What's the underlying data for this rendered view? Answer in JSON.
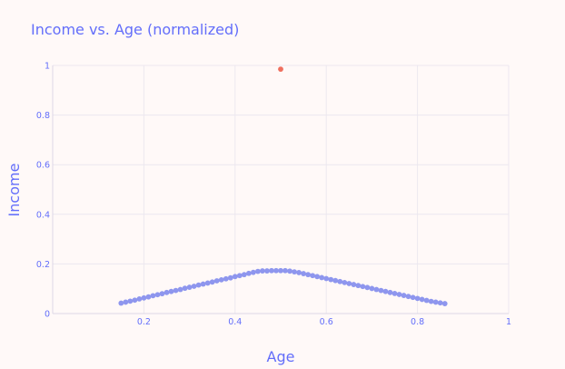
{
  "chart_data": {
    "type": "scatter",
    "title": "Income vs. Age (normalized)",
    "xlabel": "Age",
    "ylabel": "Income",
    "xlim": [
      0,
      1
    ],
    "ylim": [
      0,
      1
    ],
    "x_ticks": [
      0.2,
      0.4,
      0.6,
      0.8,
      1
    ],
    "x_tick_labels": [
      "0.2",
      "0.4",
      "0.6",
      "0.8",
      "1"
    ],
    "y_ticks": [
      0,
      0.2,
      0.4,
      0.6,
      0.8,
      1
    ],
    "y_tick_labels": [
      "0",
      "0.2",
      "0.4",
      "0.6",
      "0.8",
      "1"
    ],
    "grid": true,
    "legend": "none",
    "series": [
      {
        "color": "#8e96ee",
        "x": [
          0.15,
          0.16,
          0.17,
          0.18,
          0.19,
          0.2,
          0.21,
          0.22,
          0.23,
          0.24,
          0.25,
          0.26,
          0.27,
          0.28,
          0.29,
          0.3,
          0.31,
          0.32,
          0.33,
          0.34,
          0.35,
          0.36,
          0.37,
          0.38,
          0.39,
          0.4,
          0.41,
          0.42,
          0.43,
          0.44,
          0.45,
          0.46,
          0.47,
          0.48,
          0.49,
          0.5,
          0.51,
          0.52,
          0.53,
          0.54,
          0.55,
          0.56,
          0.57,
          0.58,
          0.59,
          0.6,
          0.61,
          0.62,
          0.63,
          0.64,
          0.65,
          0.66,
          0.67,
          0.68,
          0.69,
          0.7,
          0.71,
          0.72,
          0.73,
          0.74,
          0.75,
          0.76,
          0.77,
          0.78,
          0.79,
          0.8,
          0.81,
          0.82,
          0.83,
          0.84,
          0.85,
          0.86
        ],
        "y": [
          0.042,
          0.046,
          0.05,
          0.054,
          0.059,
          0.063,
          0.067,
          0.072,
          0.076,
          0.08,
          0.085,
          0.089,
          0.093,
          0.097,
          0.102,
          0.106,
          0.11,
          0.115,
          0.119,
          0.123,
          0.127,
          0.132,
          0.136,
          0.14,
          0.144,
          0.149,
          0.153,
          0.157,
          0.162,
          0.166,
          0.17,
          0.172,
          0.172,
          0.173,
          0.173,
          0.173,
          0.173,
          0.171,
          0.168,
          0.165,
          0.161,
          0.157,
          0.153,
          0.149,
          0.145,
          0.141,
          0.137,
          0.133,
          0.129,
          0.125,
          0.121,
          0.117,
          0.113,
          0.109,
          0.105,
          0.101,
          0.097,
          0.093,
          0.089,
          0.085,
          0.081,
          0.077,
          0.073,
          0.069,
          0.065,
          0.061,
          0.057,
          0.053,
          0.049,
          0.046,
          0.043,
          0.04
        ]
      },
      {
        "color": "#ef6f5e",
        "x": [
          0.5
        ],
        "y": [
          0.985
        ]
      }
    ]
  }
}
